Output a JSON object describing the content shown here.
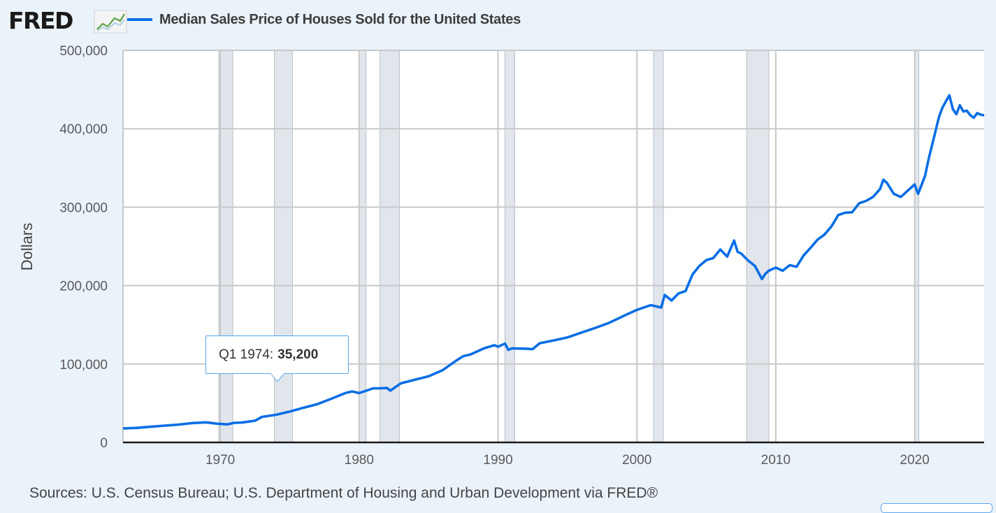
{
  "header": {
    "logo_text": "FRED",
    "logo_icon": "trend-line-icon",
    "legend_label": "Median Sales Price of Houses Sold for the United States"
  },
  "tooltip": {
    "period": "Q1 1974:",
    "value": "35,200"
  },
  "footer": {
    "source": "Sources: U.S. Census Bureau; U.S. Department of Housing and Urban Development via FRED®"
  },
  "colors": {
    "series": "#0a6ee6",
    "recession": "#e1e6ec",
    "background": "#eaf2fa",
    "grid": "#c8c8c8"
  },
  "chart_data": {
    "type": "line",
    "title": "Median Sales Price of Houses Sold for the United States",
    "xlabel": "",
    "ylabel": "Dollars",
    "xlim": [
      1963.0,
      2025.0
    ],
    "ylim": [
      0,
      500000
    ],
    "x_ticks": [
      1970,
      1980,
      1990,
      2000,
      2010,
      2020
    ],
    "x_tick_labels": [
      "1970",
      "1980",
      "1990",
      "2000",
      "2010",
      "2020"
    ],
    "y_ticks": [
      0,
      100000,
      200000,
      300000,
      400000,
      500000
    ],
    "y_tick_labels": [
      "0",
      "100,000",
      "200,000",
      "300,000",
      "400,000",
      "500,000"
    ],
    "grid": true,
    "recessions": [
      [
        1969.9,
        1970.9
      ],
      [
        1973.9,
        1975.2
      ],
      [
        1980.0,
        1980.5
      ],
      [
        1981.5,
        1982.9
      ],
      [
        1990.5,
        1991.2
      ],
      [
        2001.2,
        2001.9
      ],
      [
        2007.9,
        2009.5
      ],
      [
        2020.0,
        2020.3
      ]
    ],
    "series": [
      {
        "name": "Median Sales Price of Houses Sold for the United States",
        "x": [
          1963.0,
          1964.0,
          1965.0,
          1966.0,
          1967.0,
          1968.0,
          1969.0,
          1969.75,
          1970.5,
          1971.0,
          1971.5,
          1972.5,
          1973.0,
          1974.0,
          1975.0,
          1976.0,
          1977.0,
          1978.0,
          1979.0,
          1979.5,
          1980.0,
          1981.0,
          1981.5,
          1982.0,
          1982.25,
          1983.0,
          1984.0,
          1985.0,
          1986.0,
          1987.0,
          1987.5,
          1988.0,
          1989.0,
          1989.75,
          1990.0,
          1990.5,
          1990.75,
          1991.0,
          1992.0,
          1992.5,
          1993.0,
          1994.0,
          1995.0,
          1996.0,
          1997.0,
          1998.0,
          1999.0,
          2000.0,
          2001.0,
          2001.75,
          2002.0,
          2002.5,
          2003.0,
          2003.5,
          2004.0,
          2004.5,
          2005.0,
          2005.5,
          2006.0,
          2006.5,
          2007.0,
          2007.25,
          2007.5,
          2008.0,
          2008.5,
          2009.0,
          2009.25,
          2009.5,
          2010.0,
          2010.5,
          2011.0,
          2011.5,
          2012.0,
          2012.5,
          2013.0,
          2013.5,
          2014.0,
          2014.5,
          2015.0,
          2015.5,
          2016.0,
          2016.5,
          2017.0,
          2017.5,
          2017.75,
          2018.0,
          2018.5,
          2019.0,
          2019.5,
          2020.0,
          2020.25,
          2020.75,
          2021.0,
          2021.5,
          2021.75,
          2022.0,
          2022.25,
          2022.5,
          2022.75,
          2023.0,
          2023.25,
          2023.5,
          2023.75,
          2024.0,
          2024.25,
          2024.5,
          2024.75,
          2025.0
        ],
        "values": [
          17800,
          18500,
          20000,
          21400,
          22700,
          24700,
          25600,
          23900,
          23000,
          25000,
          25200,
          27600,
          32500,
          35200,
          39300,
          44200,
          48800,
          55700,
          62900,
          65000,
          62900,
          68900,
          69000,
          69400,
          66000,
          75300,
          79900,
          84300,
          92000,
          104500,
          110000,
          112000,
          120000,
          124000,
          122000,
          126000,
          118000,
          120000,
          119500,
          119000,
          126500,
          130000,
          133900,
          140000,
          146000,
          152500,
          161000,
          169000,
          175000,
          172000,
          188000,
          181000,
          190000,
          193000,
          214000,
          225000,
          232500,
          235000,
          246000,
          237000,
          257400,
          243000,
          241000,
          232100,
          225000,
          208400,
          215000,
          219000,
          222900,
          219000,
          226000,
          224000,
          238400,
          248000,
          258400,
          265000,
          275200,
          290000,
          293000,
          293500,
          305000,
          308000,
          313000,
          323000,
          335000,
          331000,
          317000,
          313000,
          321000,
          329000,
          317000,
          340000,
          361000,
          397000,
          415000,
          427000,
          435000,
          442600,
          425000,
          418500,
          430000,
          422000,
          423000,
          417500,
          414000,
          420000,
          418000,
          417000
        ]
      }
    ],
    "tooltip_point": {
      "x": 1974.0,
      "value": 35200,
      "label": "Q1 1974"
    }
  }
}
